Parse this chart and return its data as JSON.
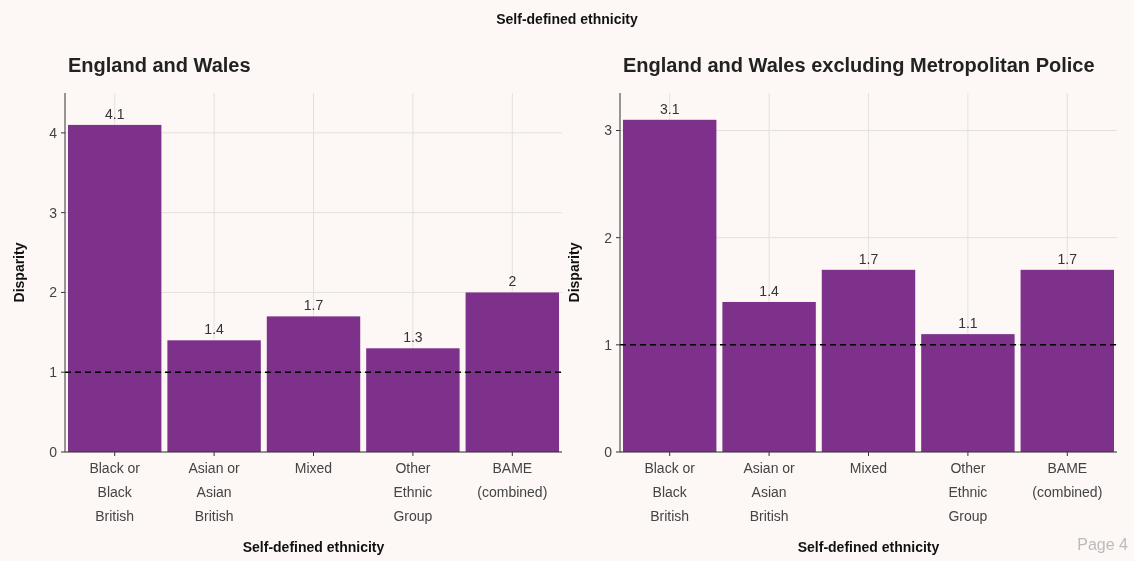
{
  "chart_data": [
    {
      "type": "bar",
      "title": "England and Wales",
      "xlabel": "Self-defined ethnicity",
      "ylabel": "Disparity",
      "annotations": [
        "Self-defined ethnicity"
      ],
      "categories": [
        "Black or Black British",
        "Asian or Asian British",
        "Mixed",
        "Other Ethnic Group",
        "BAME (combined)"
      ],
      "values": [
        4.1,
        1.4,
        1.7,
        1.3,
        2
      ],
      "color": "#7d318b",
      "data_labels": true,
      "ylim": [
        0,
        4.5
      ],
      "yticks": [
        0,
        1,
        2,
        3,
        4
      ],
      "grid": true,
      "ref_lines": [
        {
          "axis": "y",
          "value": 1,
          "line_style": "dashed",
          "color": "#000000"
        }
      ]
    },
    {
      "type": "bar",
      "title": "England and Wales excluding Metropolitan Police",
      "xlabel": "Self-defined ethnicity",
      "ylabel": "Disparity",
      "annotations": [
        "Page 4"
      ],
      "categories": [
        "Black or Black British",
        "Asian or Asian British",
        "Mixed",
        "Other Ethnic Group",
        "BAME (combined)"
      ],
      "values": [
        3.1,
        1.4,
        1.7,
        1.1,
        1.7
      ],
      "color": "#7d318b",
      "data_labels": true,
      "ylim": [
        0,
        3.35
      ],
      "yticks": [
        0,
        1,
        2,
        3
      ],
      "grid": true,
      "ref_lines": [
        {
          "axis": "y",
          "value": 1,
          "line_style": "dashed",
          "color": "#000000"
        }
      ]
    }
  ]
}
